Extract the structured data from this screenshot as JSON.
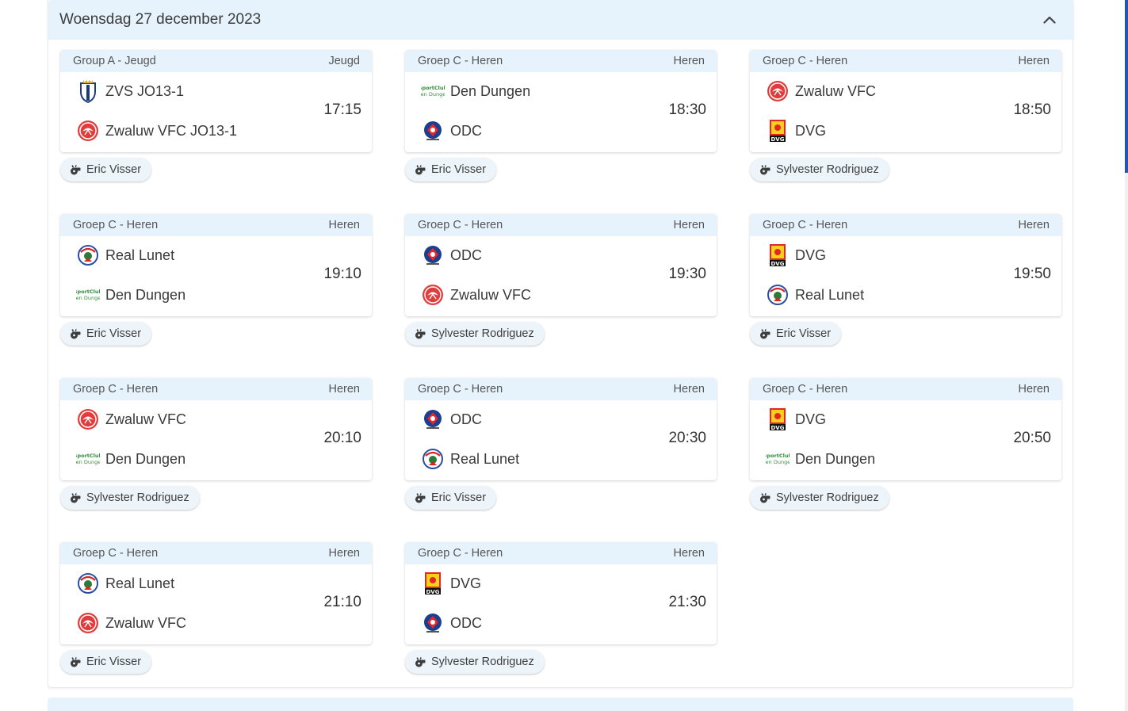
{
  "section": {
    "date_title": "Woensdag 27 december 2023",
    "toggle_icon": "chevron-up-icon"
  },
  "matches": [
    {
      "group": "Group A - Jeugd",
      "category": "Jeugd",
      "home": "ZVS JO13-1",
      "home_logo": "zvs",
      "away": "Zwaluw VFC JO13-1",
      "away_logo": "zwaluw",
      "time": "17:15",
      "referee": "Eric Visser"
    },
    {
      "group": "Groep C - Heren",
      "category": "Heren",
      "home": "Den Dungen",
      "home_logo": "dendungen",
      "away": "ODC",
      "away_logo": "odc",
      "time": "18:30",
      "referee": "Eric Visser"
    },
    {
      "group": "Groep C - Heren",
      "category": "Heren",
      "home": "Zwaluw VFC",
      "home_logo": "zwaluw",
      "away": "DVG",
      "away_logo": "dvg",
      "time": "18:50",
      "referee": "Sylvester Rodriguez"
    },
    {
      "group": "Groep C - Heren",
      "category": "Heren",
      "home": "Real Lunet",
      "home_logo": "reallunet",
      "away": "Den Dungen",
      "away_logo": "dendungen",
      "time": "19:10",
      "referee": "Eric Visser"
    },
    {
      "group": "Groep C - Heren",
      "category": "Heren",
      "home": "ODC",
      "home_logo": "odc",
      "away": "Zwaluw VFC",
      "away_logo": "zwaluw",
      "time": "19:30",
      "referee": "Sylvester Rodriguez"
    },
    {
      "group": "Groep C - Heren",
      "category": "Heren",
      "home": "DVG",
      "home_logo": "dvg",
      "away": "Real Lunet",
      "away_logo": "reallunet",
      "time": "19:50",
      "referee": "Eric Visser"
    },
    {
      "group": "Groep C - Heren",
      "category": "Heren",
      "home": "Zwaluw VFC",
      "home_logo": "zwaluw",
      "away": "Den Dungen",
      "away_logo": "dendungen",
      "time": "20:10",
      "referee": "Sylvester Rodriguez"
    },
    {
      "group": "Groep C - Heren",
      "category": "Heren",
      "home": "ODC",
      "home_logo": "odc",
      "away": "Real Lunet",
      "away_logo": "reallunet",
      "time": "20:30",
      "referee": "Eric Visser"
    },
    {
      "group": "Groep C - Heren",
      "category": "Heren",
      "home": "DVG",
      "home_logo": "dvg",
      "away": "Den Dungen",
      "away_logo": "dendungen",
      "time": "20:50",
      "referee": "Sylvester Rodriguez"
    },
    {
      "group": "Groep C - Heren",
      "category": "Heren",
      "home": "Real Lunet",
      "home_logo": "reallunet",
      "away": "Zwaluw VFC",
      "away_logo": "zwaluw",
      "time": "21:10",
      "referee": "Eric Visser"
    },
    {
      "group": "Groep C - Heren",
      "category": "Heren",
      "home": "DVG",
      "home_logo": "dvg",
      "away": "ODC",
      "away_logo": "odc",
      "time": "21:30",
      "referee": "Sylvester Rodriguez"
    }
  ],
  "referee_icon": "whistle-icon",
  "colors": {
    "header_bg": "#e7f3fc",
    "chip_bg": "#edf4fa",
    "scroll_thumb": "#1e55c8"
  }
}
